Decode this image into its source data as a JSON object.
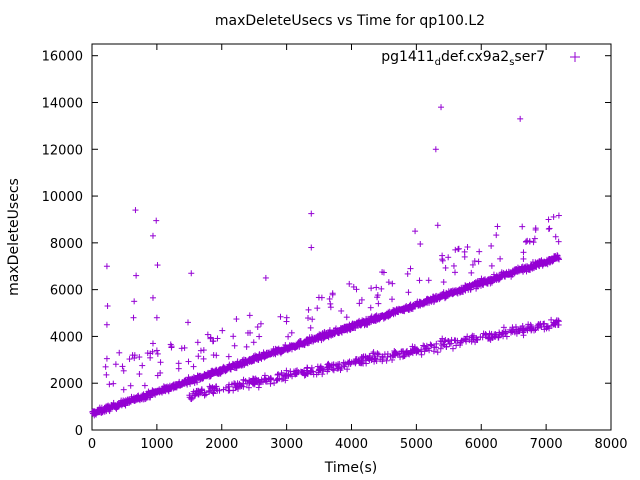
{
  "chart_data": {
    "type": "scatter",
    "title": "maxDeleteUsecs vs Time for qp100.L2",
    "xlabel": "Time(s)",
    "ylabel": "maxDeleteUsecs",
    "xlim": [
      0,
      8000
    ],
    "ylim": [
      0,
      16500
    ],
    "x_ticks": [
      0,
      1000,
      2000,
      3000,
      4000,
      5000,
      6000,
      7000,
      8000
    ],
    "y_ticks": [
      0,
      2000,
      4000,
      6000,
      8000,
      10000,
      12000,
      14000,
      16000
    ],
    "grid": false,
    "legend_position": "top-right",
    "series": [
      {
        "name_parts": [
          "pg1411",
          "def.cx9a2",
          "ser7"
        ],
        "name_subscripts": [
          "d",
          "s"
        ],
        "color": "#9400d3",
        "marker": "plus",
        "trend_main": {
          "x_start": 0,
          "x_end": 7200,
          "y_start": 700,
          "y_end": 7400
        },
        "trend_lower": {
          "x_start": 1500,
          "x_end": 7200,
          "y_start": 1500,
          "y_end": 4600
        },
        "outliers": [
          {
            "x": 5380,
            "y": 13800
          },
          {
            "x": 5300,
            "y": 12000
          },
          {
            "x": 6600,
            "y": 13300
          },
          {
            "x": 670,
            "y": 9400
          },
          {
            "x": 990,
            "y": 8950
          },
          {
            "x": 3380,
            "y": 9250
          },
          {
            "x": 940,
            "y": 8300
          },
          {
            "x": 1010,
            "y": 7050
          },
          {
            "x": 230,
            "y": 7000
          },
          {
            "x": 1530,
            "y": 6700
          },
          {
            "x": 2680,
            "y": 6500
          },
          {
            "x": 680,
            "y": 6600
          },
          {
            "x": 940,
            "y": 5650
          },
          {
            "x": 650,
            "y": 5500
          },
          {
            "x": 240,
            "y": 5300
          },
          {
            "x": 640,
            "y": 4800
          },
          {
            "x": 1000,
            "y": 4800
          },
          {
            "x": 230,
            "y": 4500
          },
          {
            "x": 1480,
            "y": 4600
          },
          {
            "x": 3380,
            "y": 7800
          },
          {
            "x": 4980,
            "y": 8500
          },
          {
            "x": 5060,
            "y": 7950
          },
          {
            "x": 5330,
            "y": 8750
          },
          {
            "x": 5600,
            "y": 7700
          },
          {
            "x": 6250,
            "y": 8700
          },
          {
            "x": 230,
            "y": 3050
          },
          {
            "x": 210,
            "y": 2700
          },
          {
            "x": 940,
            "y": 3700
          },
          {
            "x": 1000,
            "y": 3400
          },
          {
            "x": 420,
            "y": 3300
          },
          {
            "x": 660,
            "y": 3200
          }
        ]
      }
    ]
  }
}
